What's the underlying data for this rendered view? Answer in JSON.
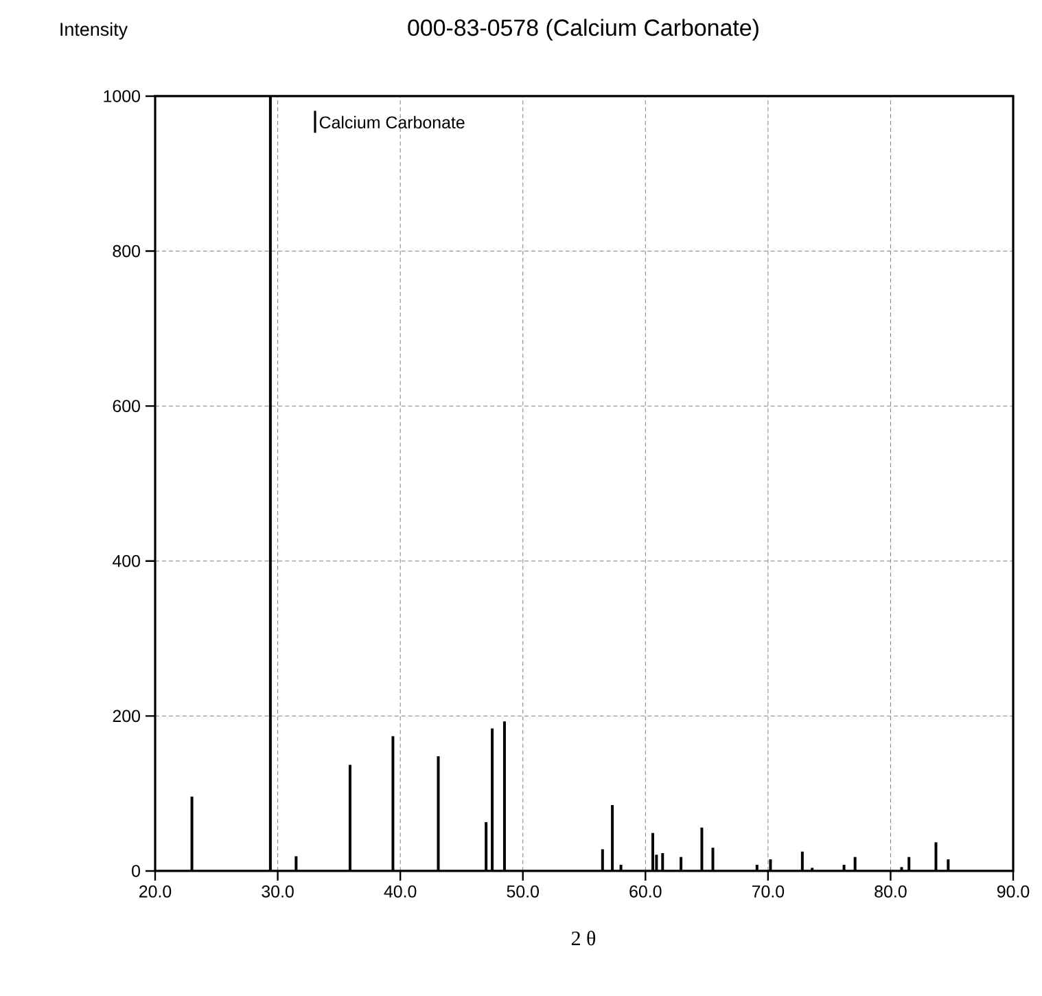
{
  "chart_data": {
    "type": "bar",
    "title": "000-83-0578 (Calcium Carbonate)",
    "ylabel": "Intensity",
    "xlabel": "2 θ",
    "series": [
      {
        "name": "Calcium Carbonate",
        "color": "#000000",
        "x": [
          23.0,
          29.4,
          31.5,
          35.9,
          39.4,
          43.1,
          47.0,
          47.5,
          48.5,
          56.5,
          57.3,
          58.0,
          60.6,
          60.9,
          61.4,
          62.9,
          64.6,
          65.5,
          69.1,
          70.2,
          72.8,
          73.6,
          76.2,
          77.1,
          80.9,
          81.5,
          83.7,
          84.7
        ],
        "values": [
          96,
          1000,
          19,
          137,
          174,
          148,
          63,
          184,
          193,
          28,
          85,
          8,
          49,
          21,
          23,
          18,
          56,
          30,
          8,
          15,
          25,
          4,
          8,
          18,
          5,
          18,
          37,
          15
        ]
      }
    ],
    "xlim": [
      20,
      90
    ],
    "ylim": [
      0,
      1000
    ],
    "xticks": [
      {
        "value": 20,
        "label": "20.0"
      },
      {
        "value": 30,
        "label": "30.0"
      },
      {
        "value": 40,
        "label": "40.0"
      },
      {
        "value": 50,
        "label": "50.0"
      },
      {
        "value": 60,
        "label": "60.0"
      },
      {
        "value": 70,
        "label": "70.0"
      },
      {
        "value": 80,
        "label": "80.0"
      },
      {
        "value": 90,
        "label": "90.0"
      }
    ],
    "yticks": [
      0,
      200,
      400,
      600,
      800,
      1000
    ],
    "grid": true,
    "legend": "top left"
  }
}
